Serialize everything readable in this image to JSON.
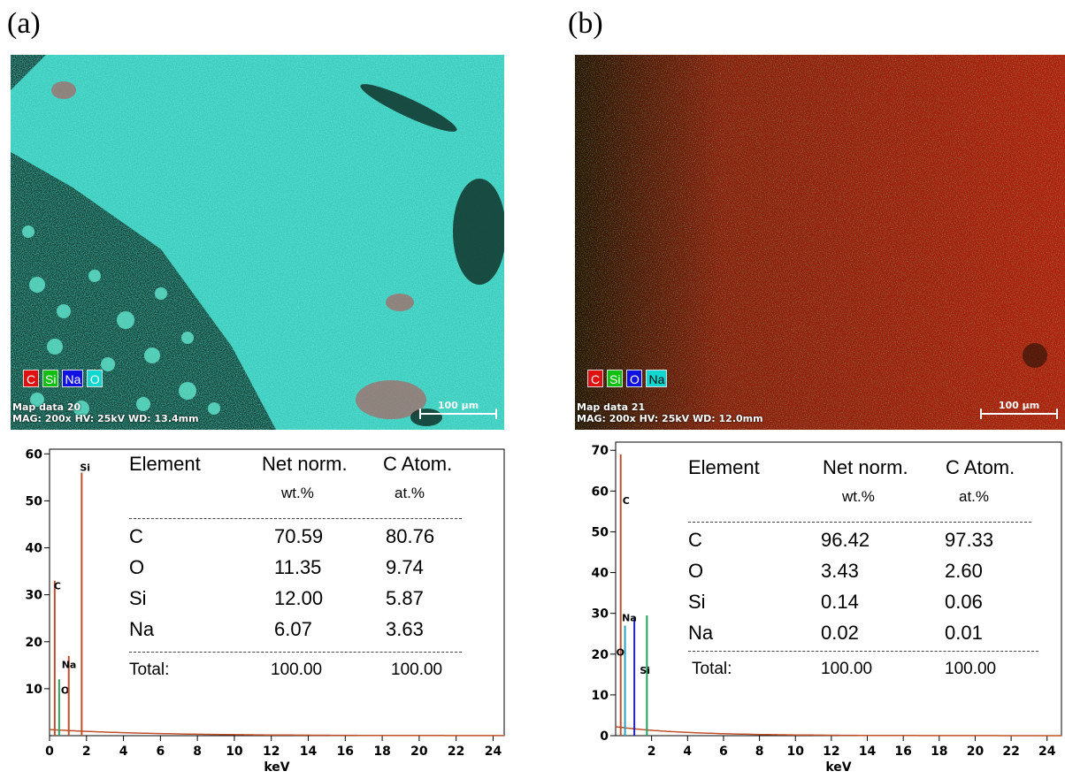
{
  "panels": [
    {
      "label": "(a)",
      "map": {
        "legend": [
          {
            "symbol": "C",
            "color": "#e01010"
          },
          {
            "symbol": "Si",
            "color": "#10c010"
          },
          {
            "symbol": "Na",
            "color": "#1010e0"
          },
          {
            "symbol": "O",
            "color": "#10d8d0"
          }
        ],
        "info_line1": "Map data 20",
        "info_line2": "MAG: 200x  HV: 25kV  WD: 13.4mm",
        "scale_label": "100 µm"
      },
      "spectrum": {
        "y_ticks": [
          "10",
          "20",
          "30",
          "40",
          "50",
          "60"
        ],
        "x_ticks": [
          "0",
          "2",
          "4",
          "6",
          "8",
          "10",
          "12",
          "14",
          "16",
          "18",
          "20",
          "22",
          "24"
        ],
        "xlabel": "keV",
        "peak_labels": [
          "C",
          "O",
          "Na",
          "Si"
        ]
      },
      "table": {
        "col_headers": [
          "Element",
          "Net norm.",
          "C Atom."
        ],
        "col_units": [
          "wt.%",
          "at.%"
        ],
        "rows": [
          {
            "element": "C",
            "wt": "70.59",
            "at": "80.76"
          },
          {
            "element": "O",
            "wt": "11.35",
            "at": "9.74"
          },
          {
            "element": "Si",
            "wt": "12.00",
            "at": "5.87"
          },
          {
            "element": "Na",
            "wt": "6.07",
            "at": "3.63"
          }
        ],
        "total_label": "Total:",
        "total_wt": "100.00",
        "total_at": "100.00"
      }
    },
    {
      "label": "(b)",
      "map": {
        "legend": [
          {
            "symbol": "C",
            "color": "#e01010"
          },
          {
            "symbol": "Si",
            "color": "#10c010"
          },
          {
            "symbol": "O",
            "color": "#1010e0"
          },
          {
            "symbol": "Na",
            "color": "#10d8d0"
          }
        ],
        "info_line1": "Map data 21",
        "info_line2": "MAG: 200x  HV: 25kV  WD: 12.0mm",
        "scale_label": "100 µm"
      },
      "spectrum": {
        "y_ticks": [
          "0",
          "10",
          "20",
          "30",
          "40",
          "50",
          "60",
          "70"
        ],
        "x_ticks": [
          "2",
          "4",
          "6",
          "8",
          "10",
          "12",
          "14",
          "16",
          "18",
          "20",
          "22",
          "24"
        ],
        "xlabel": "keV",
        "peak_labels": [
          "C",
          "Na",
          "O",
          "Si"
        ]
      },
      "table": {
        "col_headers": [
          "Element",
          "Net norm.",
          "C Atom."
        ],
        "col_units": [
          "wt.%",
          "at.%"
        ],
        "rows": [
          {
            "element": "C",
            "wt": "96.42",
            "at": "97.33"
          },
          {
            "element": "O",
            "wt": "3.43",
            "at": "2.60"
          },
          {
            "element": "Si",
            "wt": "0.14",
            "at": "0.06"
          },
          {
            "element": "Na",
            "wt": "0.02",
            "at": "0.01"
          }
        ],
        "total_label": "Total:",
        "total_wt": "100.00",
        "total_at": "100.00"
      }
    }
  ]
}
